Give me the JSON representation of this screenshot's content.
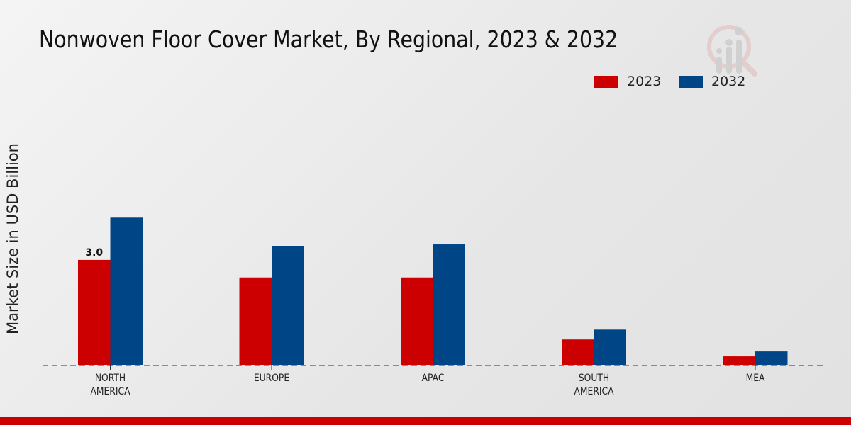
{
  "title": "Nonwoven Floor Cover Market, By Regional, 2023 & 2032",
  "colors": {
    "2023": "#cc0000",
    "2032": "#004687",
    "bottom_bar": "#cc0000"
  },
  "logo": "market-research-logo",
  "chart_data": {
    "type": "bar",
    "title": "Nonwoven Floor Cover Market, By Regional, 2023 & 2032",
    "xlabel": "",
    "ylabel": "Market Size in USD Billion",
    "categories": [
      "NORTH AMERICA",
      "EUROPE",
      "APAC",
      "SOUTH AMERICA",
      "MEA"
    ],
    "category_lines": [
      [
        "NORTH",
        "AMERICA"
      ],
      [
        "EUROPE"
      ],
      [
        "APAC"
      ],
      [
        "SOUTH",
        "AMERICA"
      ],
      [
        "MEA"
      ]
    ],
    "series": [
      {
        "name": "2023",
        "values": [
          3.0,
          2.5,
          2.5,
          0.74,
          0.26
        ]
      },
      {
        "name": "2032",
        "values": [
          4.2,
          3.4,
          3.44,
          1.02,
          0.4
        ]
      }
    ],
    "data_labels": [
      {
        "series": "2023",
        "category": "NORTH AMERICA",
        "text": "3.0"
      }
    ],
    "ylim": [
      0,
      10
    ],
    "grid": false,
    "legend_position": "top-right"
  }
}
